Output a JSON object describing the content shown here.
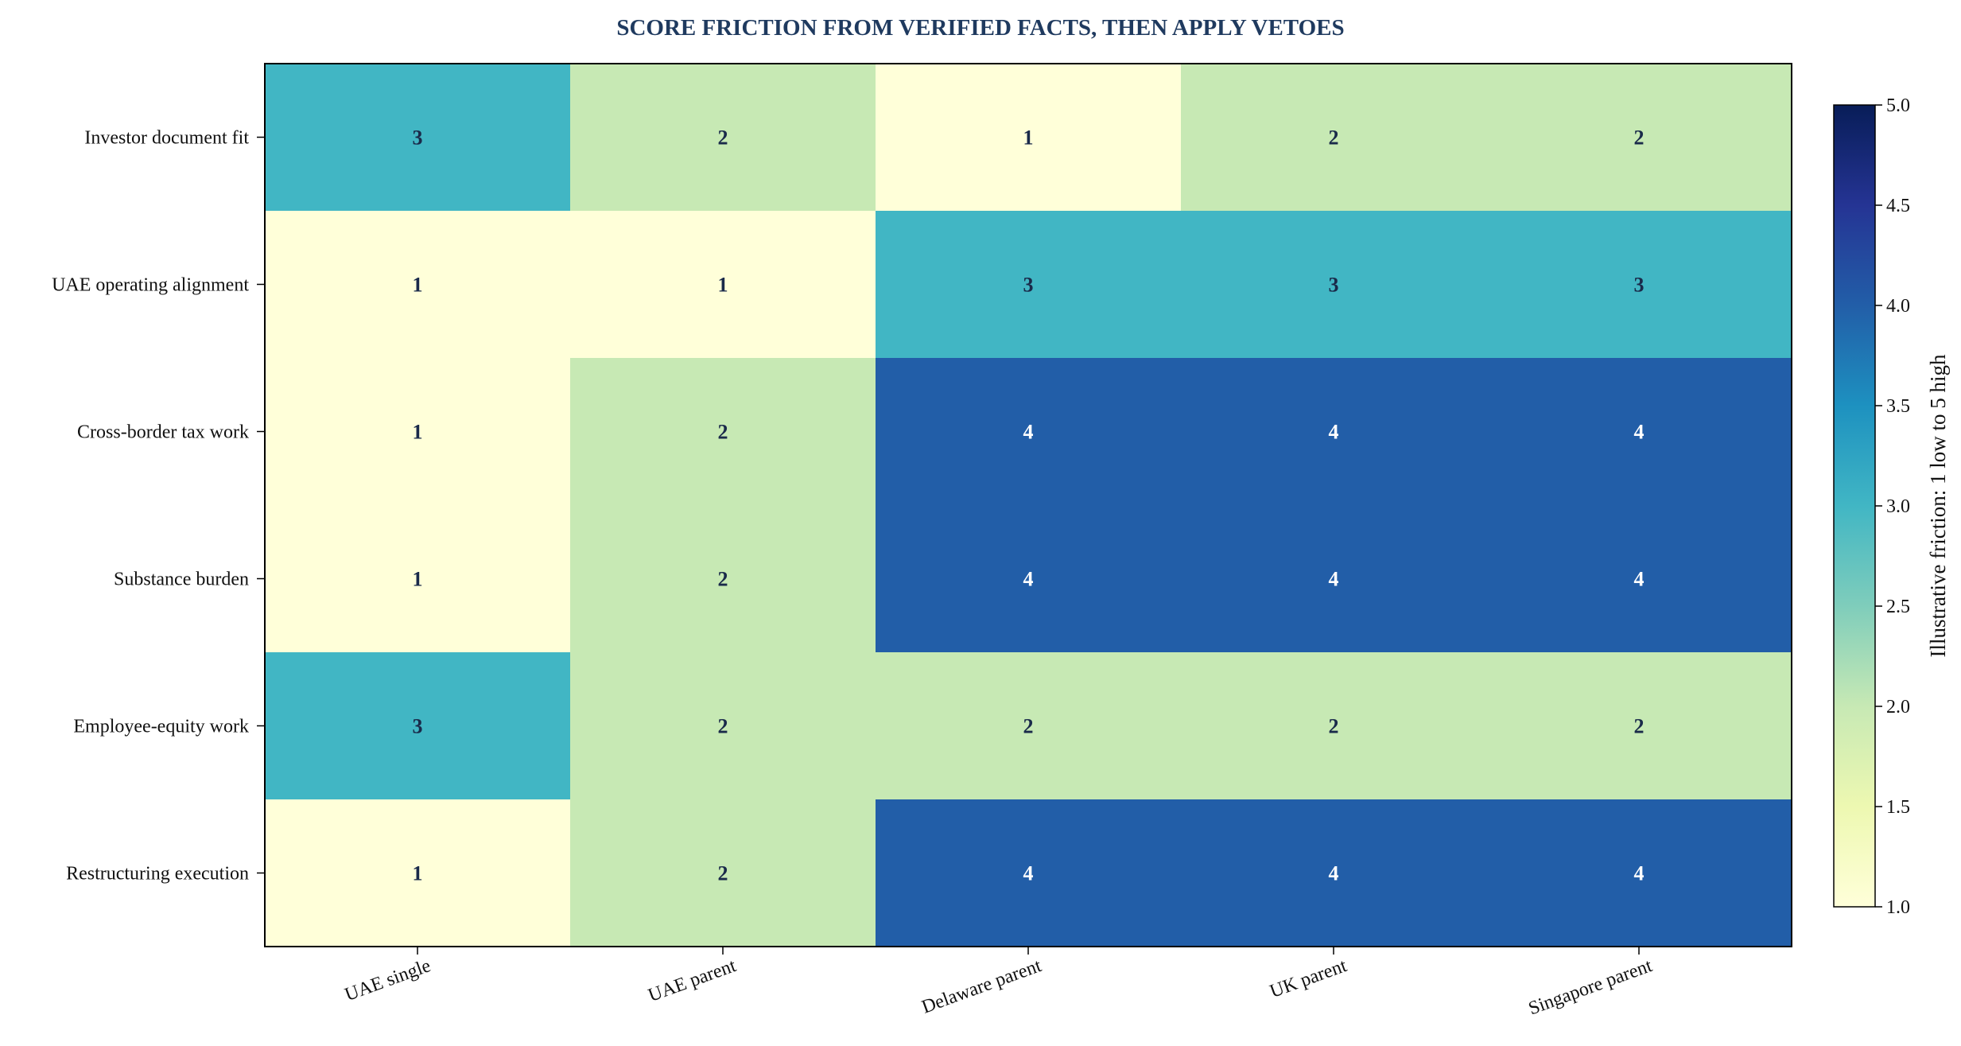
{
  "chart_data": {
    "type": "heatmap",
    "title": "SCORE FRICTION FROM VERIFIED FACTS, THEN APPLY VETOES",
    "columns": [
      "UAE single",
      "UAE parent",
      "Delaware parent",
      "UK parent",
      "Singapore parent"
    ],
    "rows": [
      "Investor document fit",
      "UAE operating alignment",
      "Cross-border tax work",
      "Substance burden",
      "Employee-equity work",
      "Restructuring execution"
    ],
    "values": [
      [
        3,
        2,
        1,
        2,
        2
      ],
      [
        1,
        1,
        3,
        3,
        3
      ],
      [
        1,
        2,
        4,
        4,
        4
      ],
      [
        1,
        2,
        4,
        4,
        4
      ],
      [
        3,
        2,
        2,
        2,
        2
      ],
      [
        1,
        2,
        4,
        4,
        4
      ]
    ],
    "colorbar": {
      "label": "Illustrative friction: 1 low to 5 high",
      "range": [
        1.0,
        5.0
      ],
      "ticks": [
        "1.0",
        "1.5",
        "2.0",
        "2.5",
        "3.0",
        "3.5",
        "4.0",
        "4.5",
        "5.0"
      ],
      "colormap": "YlGnBu"
    },
    "colors": {
      "title": "#1f3a5f",
      "dark_text": "#1a2a4a",
      "light_text": "#ffffff"
    }
  }
}
